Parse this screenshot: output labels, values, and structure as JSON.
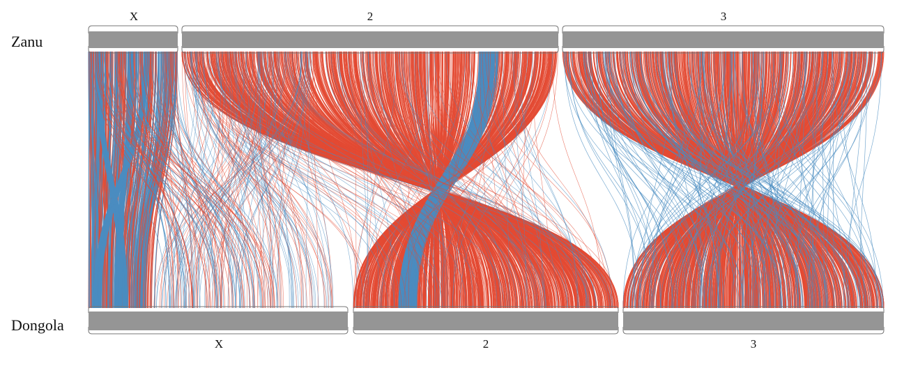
{
  "genomes": {
    "top": {
      "name": "Zanu"
    },
    "bottom": {
      "name": "Dongola"
    }
  },
  "chromosomes": {
    "top": [
      {
        "label": "X"
      },
      {
        "label": "2"
      },
      {
        "label": "3"
      }
    ],
    "bottom": [
      {
        "label": "X"
      },
      {
        "label": "2"
      },
      {
        "label": "3"
      }
    ]
  },
  "colors": {
    "chromosome_bar": "#959595",
    "forward_link": "#e34a33",
    "inverted_link": "#4a8cc0",
    "bar_outline": "#777777"
  }
}
